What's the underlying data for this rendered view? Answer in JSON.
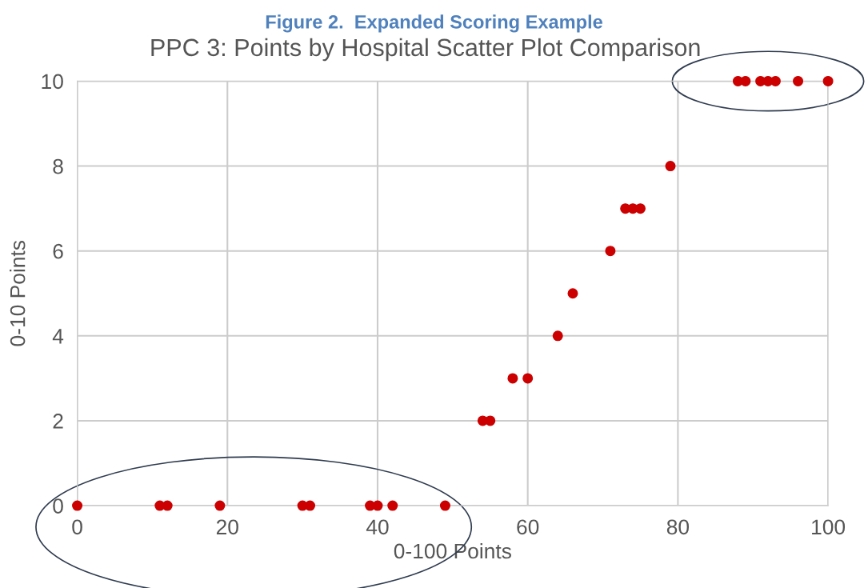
{
  "chart_data": {
    "type": "scatter",
    "title": "Figure 2.  Expanded Scoring Example",
    "subtitle": "PPC 3: Points by Hospital Scatter Plot Comparison",
    "xlabel": "0-100 Points",
    "ylabel": "0-10 Points",
    "x": [
      0,
      11,
      12,
      19,
      30,
      31,
      39,
      40,
      42,
      49,
      54,
      55,
      58,
      60,
      64,
      66,
      71,
      73,
      74,
      75,
      79,
      88,
      89,
      91,
      92,
      93,
      96,
      100
    ],
    "values": [
      0,
      0,
      0,
      0,
      0,
      0,
      0,
      0,
      0,
      0,
      2,
      2,
      3,
      3,
      4,
      5,
      6,
      7,
      7,
      7,
      8,
      10,
      10,
      10,
      10,
      10,
      10,
      10
    ],
    "color": "#cc0000",
    "marker": "circle",
    "xlim": [
      0,
      100
    ],
    "xticks": [
      0,
      20,
      40,
      60,
      80,
      100
    ],
    "ylim": [
      0,
      10
    ],
    "yticks": [
      0,
      2,
      4,
      6,
      8,
      10
    ],
    "grid": true
  }
}
